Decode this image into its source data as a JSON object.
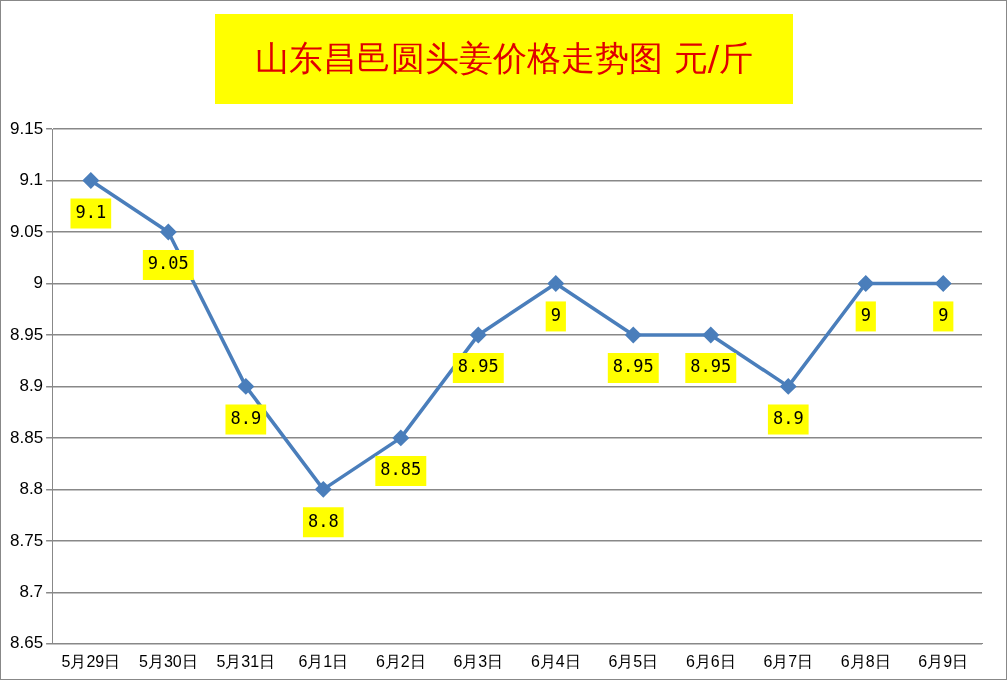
{
  "chart_data": {
    "type": "line",
    "title": "山东昌邑圆头姜价格走势图 元/斤",
    "categories": [
      "5月29日",
      "5月30日",
      "5月31日",
      "6月1日",
      "6月2日",
      "6月3日",
      "6月4日",
      "6月5日",
      "6月6日",
      "6月7日",
      "6月8日",
      "6月9日"
    ],
    "series": [
      {
        "color": "#4a7ebb",
        "values": [
          9.1,
          9.05,
          8.9,
          8.8,
          8.85,
          8.95,
          9,
          8.95,
          8.95,
          8.9,
          9,
          9
        ]
      }
    ],
    "ylim": [
      8.65,
      9.15
    ],
    "yticks": [
      8.65,
      8.7,
      8.75,
      8.8,
      8.85,
      8.9,
      8.95,
      9,
      9.05,
      9.1,
      9.15
    ],
    "grid": "y",
    "legend": false,
    "marker": "diamond",
    "line_style": "solid",
    "data_labels": true
  }
}
